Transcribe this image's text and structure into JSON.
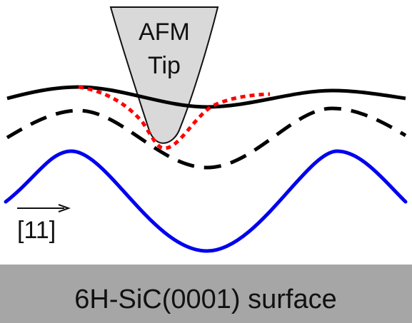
{
  "tip": {
    "line1": "AFM",
    "line2": "Tip",
    "fill_color": "#d9d9d9",
    "stroke_color": "#111111"
  },
  "direction": {
    "label": "[11]",
    "icon": "arrow-right-icon"
  },
  "substrate": {
    "label": "6H-SiC(0001) surface",
    "fill_color": "#a6a6a6"
  },
  "curves": {
    "solid_color": "#000000",
    "dashed_color": "#000000",
    "dotted_color": "#ff0000",
    "sine_color": "#0000ee"
  }
}
